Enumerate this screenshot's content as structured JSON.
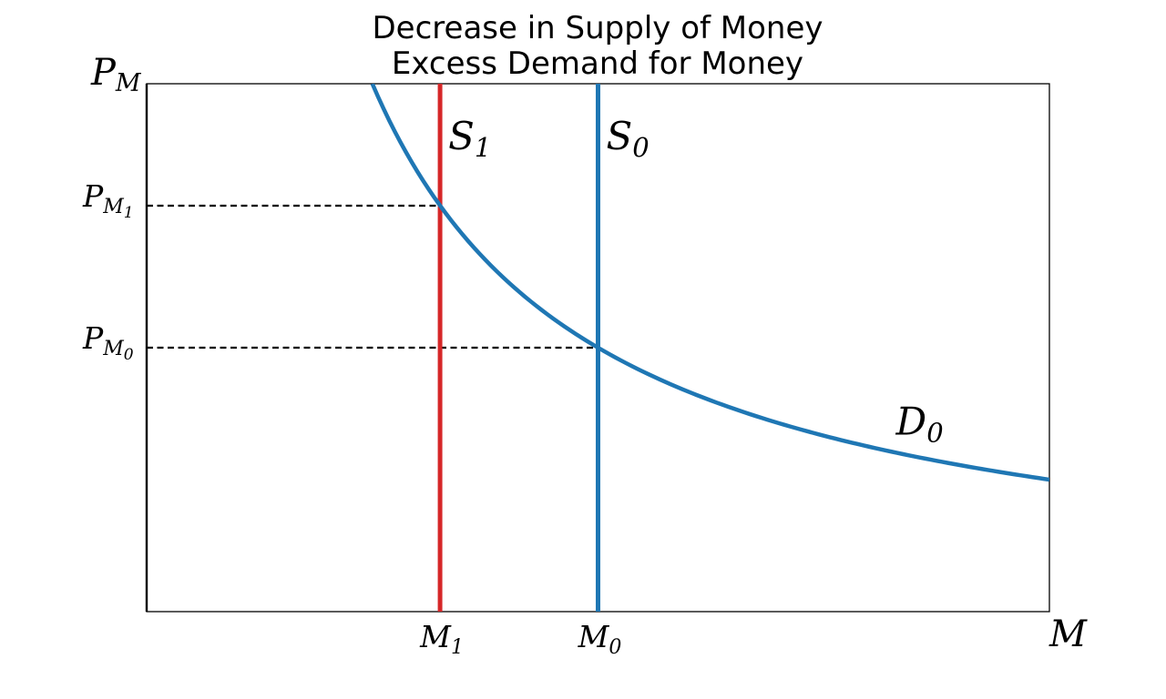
{
  "chart_data": {
    "type": "line",
    "title": "Decrease in Supply of Money",
    "subtitle": "Excess Demand for Money",
    "xlabel": {
      "base": "M",
      "sub": ""
    },
    "ylabel": {
      "base": "P",
      "sub": "M"
    },
    "xlim": [
      0,
      10
    ],
    "ylim": [
      0,
      10
    ],
    "axis_ticks_shown": false,
    "grid": false,
    "demand": {
      "label": {
        "base": "D",
        "sub": "0"
      },
      "label_x": 8.3,
      "color": "#1f77b4",
      "k": 25,
      "x_from": 2.5,
      "x_to": 10,
      "points": [
        [
          2.5,
          10.0
        ],
        [
          3.25,
          7.69
        ],
        [
          4.0,
          6.25
        ],
        [
          5.0,
          5.0
        ],
        [
          6.0,
          4.17
        ],
        [
          7.0,
          3.57
        ],
        [
          8.0,
          3.13
        ],
        [
          9.0,
          2.78
        ],
        [
          10.0,
          2.5
        ]
      ]
    },
    "supply_curves": [
      {
        "id": "S0",
        "label": {
          "base": "S",
          "sub": "0"
        },
        "x": 5.0,
        "color": "#1f77b4"
      },
      {
        "id": "S1",
        "label": {
          "base": "S",
          "sub": "1"
        },
        "x": 3.25,
        "color": "#d62728"
      }
    ],
    "equilibria": [
      {
        "x_label": {
          "base": "M",
          "sub": "0"
        },
        "y_label": {
          "base": "P",
          "sub": "M",
          "subsub": "0"
        },
        "x": 5.0,
        "y": 5.0
      },
      {
        "x_label": {
          "base": "M",
          "sub": "1"
        },
        "y_label": {
          "base": "P",
          "sub": "M",
          "subsub": "1"
        },
        "x": 3.25,
        "y": 7.69
      }
    ],
    "guide_line_color": "#000000",
    "axis_color": "#000000"
  }
}
